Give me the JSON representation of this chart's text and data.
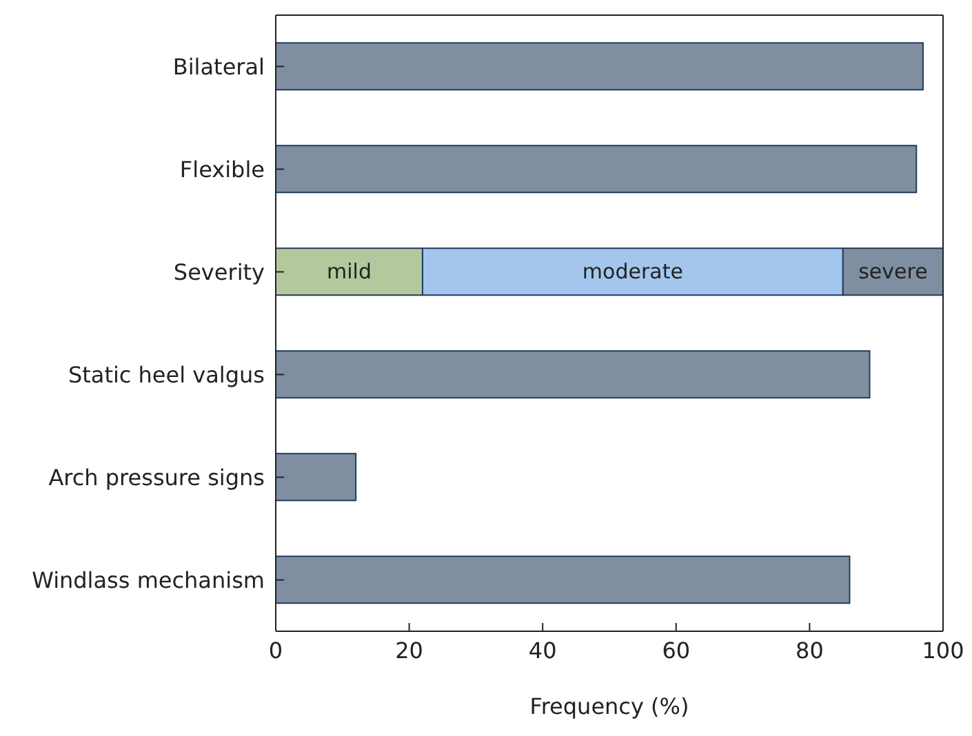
{
  "chart_data": {
    "type": "bar",
    "orientation": "horizontal",
    "stacked": true,
    "xlabel": "Frequency (%)",
    "categories": [
      "Bilateral",
      "Flexible",
      "Severity",
      "Static heel valgus",
      "Arch pressure signs",
      "Windlass mechanism"
    ],
    "series": [
      {
        "color": "#7f8fa1",
        "values": [
          97,
          96,
          null,
          89,
          12,
          86
        ]
      },
      {
        "name": "mild",
        "color": "#b3c99d",
        "values": [
          null,
          null,
          22,
          null,
          null,
          null
        ]
      },
      {
        "name": "moderate",
        "color": "#a5c6ec",
        "values": [
          null,
          null,
          63,
          null,
          null,
          null
        ]
      },
      {
        "name": "severe",
        "color": "#7f8fa1",
        "values": [
          null,
          null,
          15,
          null,
          null,
          null
        ]
      }
    ],
    "xlim": [
      0,
      100
    ],
    "xticks": [
      0,
      20,
      40,
      60,
      80,
      100
    ],
    "grid": false,
    "legend": false
  }
}
